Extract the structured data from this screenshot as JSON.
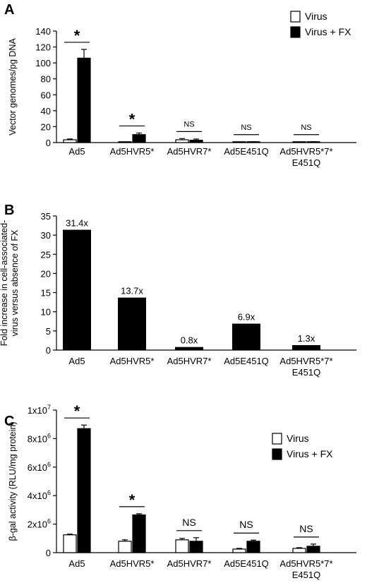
{
  "chart_data": [
    {
      "panel": "A",
      "type": "bar",
      "ylabel": "Vector genomes/pg DNA",
      "ylim": [
        0,
        140
      ],
      "yticks": [
        0,
        20,
        40,
        60,
        80,
        100,
        120,
        140
      ],
      "ytick_labels": [
        "0",
        "20",
        "40",
        "60",
        "80",
        "100",
        "120",
        "140"
      ],
      "categories": [
        [
          "Ad5"
        ],
        [
          "Ad5HVR5*"
        ],
        [
          "Ad5HVR7*"
        ],
        [
          "Ad5E451Q"
        ],
        [
          "Ad5HVR5*7*",
          "E451Q"
        ]
      ],
      "series": [
        {
          "name": "Virus",
          "color": "#ffffff",
          "values": [
            3.5,
            0.5,
            3.5,
            0.5,
            0.5
          ],
          "errors": [
            1,
            0.3,
            1.5,
            0.2,
            0.2
          ]
        },
        {
          "name": "Virus + FX",
          "color": "#000000",
          "values": [
            106,
            10,
            3,
            0.8,
            0.8
          ],
          "errors": [
            11,
            2,
            1.5,
            0.3,
            0.3
          ]
        }
      ],
      "significance": [
        "*",
        "*",
        "NS",
        "NS",
        "NS"
      ],
      "legend": "top-right"
    },
    {
      "panel": "B",
      "type": "bar",
      "ylabel": [
        "Fold increase in cell-associated-",
        "virus versus absence of FX"
      ],
      "ylim": [
        0,
        35
      ],
      "yticks": [
        0,
        5,
        10,
        15,
        20,
        25,
        30,
        35
      ],
      "ytick_labels": [
        "0",
        "5",
        "10",
        "15",
        "20",
        "25",
        "30",
        "35"
      ],
      "categories": [
        [
          "Ad5"
        ],
        [
          "Ad5HVR5*"
        ],
        [
          "Ad5HVR7*"
        ],
        [
          "Ad5E451Q"
        ],
        [
          "Ad5HVR5*7*",
          "E451Q"
        ]
      ],
      "values": [
        31.4,
        13.7,
        0.8,
        6.9,
        1.3
      ],
      "data_labels": [
        "31.4x",
        "13.7x",
        "0.8x",
        "6.9x",
        "1.3x"
      ],
      "color": "#000000"
    },
    {
      "panel": "C",
      "type": "bar",
      "ylabel": "β-gal activity (RLU/mg protein)",
      "ylim": [
        0,
        10000000
      ],
      "yticks": [
        0,
        2000000,
        4000000,
        6000000,
        8000000,
        10000000
      ],
      "ytick_labels": [
        {
          "base": "0",
          "exp": ""
        },
        {
          "base": "2x10",
          "exp": "6"
        },
        {
          "base": "4x10",
          "exp": "6"
        },
        {
          "base": "6x10",
          "exp": "6"
        },
        {
          "base": "8x10",
          "exp": "6"
        },
        {
          "base": "1x10",
          "exp": "7"
        }
      ],
      "categories": [
        [
          "Ad5"
        ],
        [
          "Ad5HVR5*"
        ],
        [
          "Ad5HVR7*"
        ],
        [
          "Ad5E451Q"
        ],
        [
          "Ad5HVR5*7*",
          "E451Q"
        ]
      ],
      "series": [
        {
          "name": "Virus",
          "color": "#ffffff",
          "values": [
            1250000,
            800000,
            900000,
            250000,
            300000
          ],
          "errors": [
            50000,
            100000,
            100000,
            50000,
            50000
          ]
        },
        {
          "name": "Virus + FX",
          "color": "#000000",
          "values": [
            8700000,
            2650000,
            800000,
            800000,
            450000
          ],
          "errors": [
            250000,
            80000,
            250000,
            80000,
            150000
          ]
        }
      ],
      "significance": [
        "*",
        "*",
        "NS",
        "NS",
        "NS"
      ],
      "legend": "top-right"
    }
  ]
}
